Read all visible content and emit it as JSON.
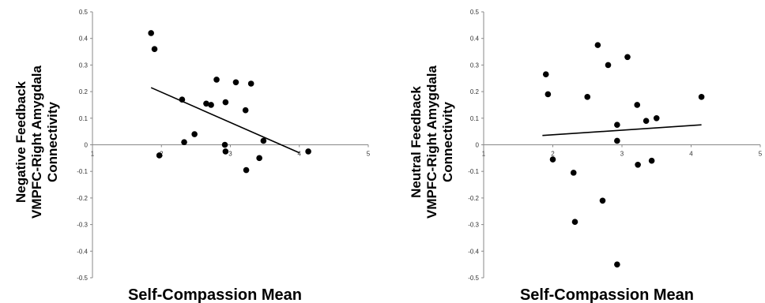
{
  "chart_data": [
    {
      "type": "scatter",
      "title": "",
      "xlabel": "Self-Compassion Mean",
      "ylabel_lines": [
        "Negative Feedback",
        "VMPFC-Right Amygdala",
        "Connectivity"
      ],
      "xlim": [
        1,
        5
      ],
      "ylim": [
        -0.5,
        0.5
      ],
      "x_ticks": [
        1,
        2,
        3,
        4,
        5
      ],
      "y_ticks": [
        -0.5,
        -0.4,
        -0.3,
        -0.2,
        -0.1,
        0,
        0.1,
        0.2,
        0.3,
        0.4,
        0.5
      ],
      "x_tick_labels": [
        "1",
        "2",
        "3",
        "4",
        "5"
      ],
      "y_tick_labels": [
        "-0.5",
        "-0.4",
        "-0.3",
        "-0.2",
        "-0.1",
        "0",
        "0.1",
        "0.2",
        "0.3",
        "0.4",
        "0.5"
      ],
      "points": [
        {
          "x": 1.85,
          "y": 0.42
        },
        {
          "x": 1.9,
          "y": 0.36
        },
        {
          "x": 1.97,
          "y": -0.04
        },
        {
          "x": 2.3,
          "y": 0.17
        },
        {
          "x": 2.33,
          "y": 0.01
        },
        {
          "x": 2.48,
          "y": 0.04
        },
        {
          "x": 2.65,
          "y": 0.155
        },
        {
          "x": 2.72,
          "y": 0.15
        },
        {
          "x": 2.8,
          "y": 0.245
        },
        {
          "x": 2.93,
          "y": 0.16
        },
        {
          "x": 2.92,
          "y": 0.0
        },
        {
          "x": 2.93,
          "y": -0.025
        },
        {
          "x": 3.08,
          "y": 0.235
        },
        {
          "x": 3.22,
          "y": 0.13
        },
        {
          "x": 3.23,
          "y": -0.095
        },
        {
          "x": 3.3,
          "y": 0.23
        },
        {
          "x": 3.42,
          "y": -0.05
        },
        {
          "x": 3.48,
          "y": 0.015
        },
        {
          "x": 4.13,
          "y": -0.025
        }
      ],
      "trendline": {
        "x": [
          1.85,
          4.0
        ],
        "y": [
          0.215,
          -0.03
        ]
      }
    },
    {
      "type": "scatter",
      "title": "",
      "xlabel": "Self-Compassion Mean",
      "ylabel_lines": [
        "Neutral Feedback",
        "VMPFC-Right Amygdala",
        "Connectivity"
      ],
      "xlim": [
        1,
        5
      ],
      "ylim": [
        -0.5,
        0.5
      ],
      "x_ticks": [
        1,
        2,
        3,
        4,
        5
      ],
      "y_ticks": [
        -0.5,
        -0.4,
        -0.3,
        -0.2,
        -0.1,
        0,
        0.1,
        0.2,
        0.3,
        0.4,
        0.5
      ],
      "x_tick_labels": [
        "1",
        "2",
        "3",
        "4",
        "5"
      ],
      "y_tick_labels": [
        "-0.5",
        "-0.4",
        "-0.3",
        "-0.2",
        "-0.1",
        "0",
        "0.1",
        "0.2",
        "0.3",
        "0.4",
        "0.5"
      ],
      "points": [
        {
          "x": 1.9,
          "y": 0.265
        },
        {
          "x": 1.93,
          "y": 0.19
        },
        {
          "x": 2.0,
          "y": -0.055
        },
        {
          "x": 2.3,
          "y": -0.105
        },
        {
          "x": 2.32,
          "y": -0.29
        },
        {
          "x": 2.5,
          "y": 0.18
        },
        {
          "x": 2.65,
          "y": 0.375
        },
        {
          "x": 2.72,
          "y": -0.21
        },
        {
          "x": 2.8,
          "y": 0.3
        },
        {
          "x": 2.93,
          "y": 0.075
        },
        {
          "x": 2.93,
          "y": 0.015
        },
        {
          "x": 2.93,
          "y": -0.45
        },
        {
          "x": 3.08,
          "y": 0.33
        },
        {
          "x": 3.22,
          "y": 0.15
        },
        {
          "x": 3.23,
          "y": -0.075
        },
        {
          "x": 3.35,
          "y": 0.09
        },
        {
          "x": 3.43,
          "y": -0.06
        },
        {
          "x": 3.5,
          "y": 0.1
        },
        {
          "x": 4.15,
          "y": 0.18
        }
      ],
      "trendline": {
        "x": [
          1.85,
          4.15
        ],
        "y": [
          0.035,
          0.075
        ]
      }
    }
  ]
}
